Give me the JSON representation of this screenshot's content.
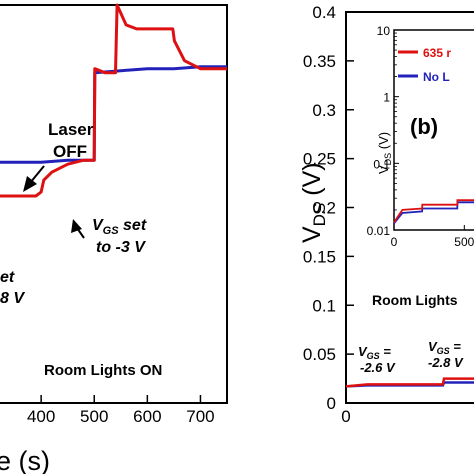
{
  "chart_data": [
    {
      "panel": "left (cropped)",
      "type": "line",
      "xlabel_visible": "e (s)",
      "ylabel": "",
      "xlim": [
        315,
        750
      ],
      "x_ticks": [
        "400",
        "500",
        "600",
        "700"
      ],
      "x_tick_values": [
        400,
        500,
        600,
        700
      ],
      "grid": false,
      "series": [
        {
          "color": "#dd1111",
          "x": [
            315,
            340,
            370,
            390,
            400,
            405,
            420,
            450,
            480,
            500,
            501,
            520,
            540,
            543,
            560,
            580,
            600,
            620,
            648,
            651,
            670,
            700,
            750
          ],
          "y": [
            0.52,
            0.52,
            0.52,
            0.52,
            0.53,
            0.56,
            0.58,
            0.6,
            0.61,
            0.61,
            0.84,
            0.83,
            0.83,
            1.0,
            0.95,
            0.94,
            0.94,
            0.94,
            0.94,
            0.91,
            0.86,
            0.84,
            0.84
          ]
        },
        {
          "color": "#2222bb",
          "x": [
            315,
            400,
            450,
            500,
            501,
            550,
            600,
            650,
            700,
            750
          ],
          "y": [
            0.605,
            0.605,
            0.61,
            0.61,
            0.83,
            0.835,
            0.84,
            0.84,
            0.845,
            0.845
          ]
        }
      ],
      "annotations": {
        "laser_off": [
          "Laser",
          "OFF"
        ],
        "vgs_set": [
          "V",
          "GS",
          " set",
          "to -3 V"
        ],
        "left_fragments": [
          "et",
          "8 V"
        ],
        "room_lights": "Room Lights ON"
      },
      "xlabel_text": "e (s)"
    },
    {
      "panel": "b",
      "panel_label": "(b)",
      "type": "line",
      "ylabel": "V",
      "ylabel_sub": "DS",
      "ylabel_unit": " (V)",
      "ylim": [
        0,
        0.4
      ],
      "y_ticks": [
        "0.4",
        "0.35",
        "0.3",
        "0.25",
        "0.2",
        "0.15",
        "0.1",
        "0.05",
        "0"
      ],
      "y_tick_values": [
        0.4,
        0.35,
        0.3,
        0.25,
        0.2,
        0.15,
        0.1,
        0.05,
        0
      ],
      "x_ticks": [
        "0"
      ],
      "grid": false,
      "series": [
        {
          "color": "#2222bb",
          "x": [
            0,
            20,
            90,
            91,
            130
          ],
          "y": [
            0.017,
            0.018,
            0.018,
            0.021,
            0.021
          ]
        },
        {
          "color": "#dd1111",
          "x": [
            0,
            20,
            90,
            91,
            130
          ],
          "y": [
            0.017,
            0.019,
            0.019,
            0.025,
            0.025
          ]
        }
      ],
      "annotations": {
        "room_lights": "Room Lights",
        "vgs_a": [
          "V",
          "GS",
          " =",
          "-2.6 V"
        ],
        "vgs_b": [
          "V",
          "GS",
          " =",
          "-2.8 V"
        ]
      },
      "inset": {
        "type": "line",
        "log_y": true,
        "ylabel": "V",
        "ylabel_sub": "DS",
        "ylabel_unit": " (V)",
        "y_ticks": [
          "10",
          "1",
          "0.1",
          "0.01"
        ],
        "y_tick_values": [
          10,
          1,
          0.1,
          0.01
        ],
        "x_ticks": [
          "0",
          "500"
        ],
        "x_tick_values": [
          0,
          500
        ],
        "legend": [
          "635 r",
          "No L"
        ],
        "legend_colors": [
          "#dd1111",
          "#2222bb"
        ],
        "series": [
          {
            "color": "#2222bb",
            "x": [
              0,
              60,
              200,
              201,
              450,
              451,
              640
            ],
            "y": [
              0.0125,
              0.018,
              0.019,
              0.021,
              0.021,
              0.026,
              0.026
            ]
          },
          {
            "color": "#dd1111",
            "x": [
              0,
              60,
              200,
              201,
              450,
              451,
              640
            ],
            "y": [
              0.013,
              0.02,
              0.021,
              0.024,
              0.024,
              0.028,
              0.028
            ]
          }
        ]
      }
    }
  ]
}
